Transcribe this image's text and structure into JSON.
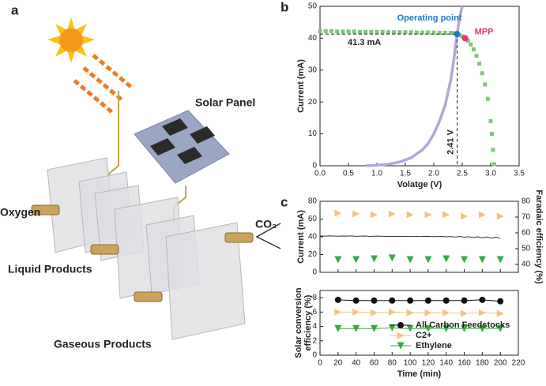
{
  "diagram": {
    "label": "a",
    "solar_panel": "Solar Panel",
    "oxygen": "Oxygen",
    "liquid_products": "Liquid Products",
    "gaseous_products": "Gaseous Products",
    "co2": "CO₂"
  },
  "chart_data": [
    {
      "type": "line",
      "panel": "b",
      "xlabel": "Volatge (V)",
      "ylabel": "Current (mA)",
      "xlim": [
        0,
        3.5
      ],
      "xticks": [
        {
          "value": 0,
          "label": "0.0"
        },
        0.5,
        {
          "value": 1,
          "label": "1.0"
        },
        1.5,
        {
          "value": 2,
          "label": "2.0"
        },
        2.5,
        {
          "value": 3,
          "label": "3.0"
        },
        3.5
      ],
      "ylim": [
        0,
        50
      ],
      "yticks": [
        0,
        10,
        20,
        30,
        40,
        50
      ],
      "series": [
        {
          "color": "#b3a6d8",
          "style": "line",
          "x": [
            0.8,
            1.0,
            1.2,
            1.4,
            1.6,
            1.8,
            1.9,
            2.0,
            2.1,
            2.2,
            2.3,
            2.35,
            2.4,
            2.45,
            2.5
          ],
          "values": [
            0,
            0.2,
            0.5,
            1.2,
            2.5,
            5,
            7,
            10,
            14,
            19,
            27,
            33,
            40,
            46,
            50
          ]
        },
        {
          "color": "#7fc77a",
          "style": "marker",
          "marker": "square",
          "x": [
            0,
            0.1,
            0.2,
            0.3,
            0.4,
            0.5,
            0.6,
            0.7,
            0.8,
            0.9,
            1.0,
            1.1,
            1.2,
            1.3,
            1.4,
            1.5,
            1.6,
            1.7,
            1.8,
            1.9,
            2.0,
            2.1,
            2.2,
            2.3,
            2.35,
            2.4,
            2.45,
            2.5,
            2.55,
            2.6,
            2.65,
            2.7,
            2.75,
            2.8,
            2.85,
            2.9,
            2.95,
            3.0,
            3.02,
            3.04,
            3.06
          ],
          "values": [
            42.2,
            42.2,
            42.2,
            42.1,
            42.1,
            42.1,
            42.1,
            42.0,
            42.0,
            42.0,
            42.0,
            42.0,
            41.9,
            41.9,
            41.9,
            41.9,
            41.9,
            41.8,
            41.8,
            41.8,
            41.8,
            41.7,
            41.7,
            41.7,
            41.6,
            41.3,
            41.0,
            40.6,
            40.0,
            39.2,
            38.0,
            36.5,
            34.5,
            32.0,
            29.0,
            25.5,
            21.0,
            14.0,
            10.0,
            5.0,
            0.5
          ]
        }
      ],
      "operating_point": {
        "label": "Operating point",
        "x": 2.41,
        "y": 41.3,
        "x_text": "2.41 V",
        "y_text": "41.3 mA",
        "color": "#1f78c8"
      },
      "mpp": {
        "label": "MPP",
        "x": 2.55,
        "y": 40,
        "color": "#e6337a"
      }
    },
    {
      "type": "line",
      "panel": "c",
      "ylabel": "Current (mA)",
      "y2label": "Faradaic efficiency (%)",
      "xlim": [
        0,
        220
      ],
      "ylim": [
        0,
        80
      ],
      "yticks": [
        0,
        20,
        40,
        60,
        80
      ],
      "y2lim": [
        35,
        80
      ],
      "y2ticks": [
        40,
        50,
        60,
        70,
        80
      ],
      "x": [
        20,
        40,
        60,
        80,
        100,
        120,
        140,
        160,
        180,
        200
      ],
      "series": [
        {
          "color": "#333333",
          "style": "line",
          "x": [
            0,
            5,
            10,
            15,
            20,
            25,
            30,
            35,
            40,
            45,
            50,
            55,
            60,
            65,
            70,
            75,
            80,
            85,
            90,
            95,
            100,
            105,
            110,
            115,
            120,
            125,
            130,
            135,
            140,
            145,
            150,
            155,
            160,
            165,
            170,
            175,
            180,
            185,
            190,
            195,
            200
          ],
          "values": [
            41,
            40.8,
            41,
            40.9,
            40.7,
            40.9,
            40.8,
            41,
            40.6,
            40.8,
            40.9,
            40.5,
            40.7,
            40.8,
            40.6,
            40.4,
            40.7,
            40.5,
            40.6,
            40.3,
            40.5,
            40.6,
            40.2,
            40.4,
            40.5,
            40.1,
            40.3,
            40.4,
            40,
            40.2,
            39.8,
            40.3,
            39.6,
            40.1,
            39.2,
            40,
            38.8,
            39.9,
            38.5,
            39.6,
            38.2
          ]
        },
        {
          "color": "#f5c27e",
          "style": "marker",
          "marker": "tri-right",
          "axis": "y2",
          "values": [
            72.5,
            72,
            71.5,
            72,
            71.5,
            71.5,
            71.5,
            70.5,
            71.5,
            70.5
          ]
        },
        {
          "color": "#3aa845",
          "style": "marker",
          "marker": "tri-down",
          "axis": "y2",
          "values": [
            43,
            43,
            43.5,
            44,
            43,
            43,
            43.5,
            43,
            43,
            43
          ]
        }
      ]
    },
    {
      "type": "line",
      "xlabel": "Time (min)",
      "ylabel": [
        "Solar conversion",
        "efficiency (%)"
      ],
      "xlim": [
        0,
        220
      ],
      "xticks": [
        0,
        20,
        40,
        60,
        80,
        100,
        120,
        140,
        160,
        180,
        200,
        220
      ],
      "ylim": [
        0,
        9
      ],
      "yticks": [
        0,
        2,
        4,
        6,
        8
      ],
      "legend": "lower right",
      "x": [
        20,
        40,
        60,
        80,
        100,
        120,
        140,
        160,
        180,
        200
      ],
      "series": [
        {
          "name": "All Carbon Feedstocks",
          "color": "#111111",
          "style": "both",
          "marker": "circle",
          "values": [
            7.7,
            7.6,
            7.6,
            7.6,
            7.6,
            7.6,
            7.6,
            7.6,
            7.7,
            7.5
          ]
        },
        {
          "name": "C2+",
          "color": "#f5c27e",
          "style": "both",
          "marker": "tri-right",
          "values": [
            6.0,
            6.0,
            5.9,
            6.0,
            5.9,
            5.9,
            5.9,
            5.8,
            5.9,
            5.8
          ]
        },
        {
          "name": "Ethylene",
          "color": "#3aa845",
          "style": "both",
          "marker": "tri-down",
          "values": [
            3.7,
            3.7,
            3.7,
            3.8,
            3.7,
            3.7,
            3.7,
            3.7,
            3.7,
            3.7
          ]
        }
      ]
    }
  ]
}
